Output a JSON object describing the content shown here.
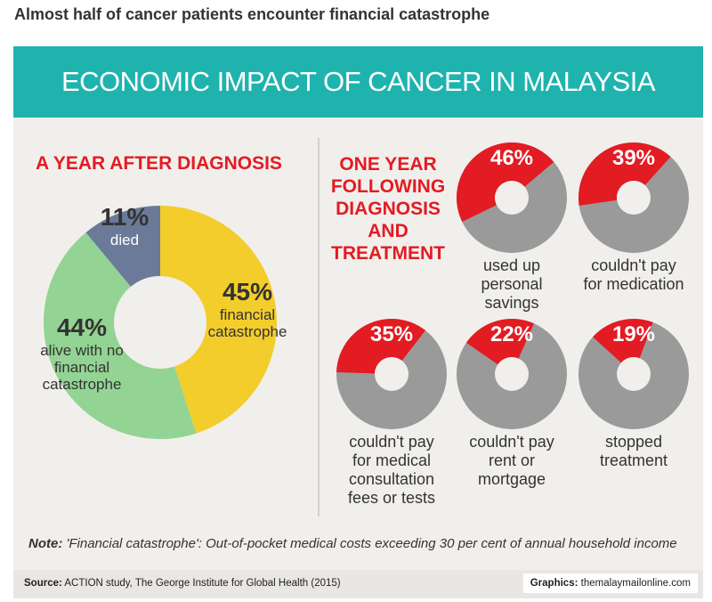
{
  "header": {
    "title": "Almost half of cancer patients encounter financial catastrophe"
  },
  "banner": {
    "title": "ECONOMIC IMPACT OF CANCER IN MALAYSIA"
  },
  "chart_data": [
    {
      "type": "donut",
      "title": "A YEAR AFTER DIAGNOSIS",
      "categories": [
        "financial catastrophe",
        "alive with no financial catastrophe",
        "died"
      ],
      "values": [
        45,
        44,
        11
      ],
      "value_labels": [
        "45%",
        "44%",
        "11%"
      ],
      "colors": [
        "#f3cd2b",
        "#93d393",
        "#6b7a99"
      ]
    },
    {
      "type": "donuts",
      "title": "ONE YEAR FOLLOWING DIAGNOSIS AND TREATMENT",
      "categories": [
        "used up personal savings",
        "couldn't pay for medication",
        "couldn't pay for medical consultation fees or tests",
        "couldn't pay rent or mortgage",
        "stopped treatment"
      ],
      "values": [
        46,
        39,
        35,
        22,
        19
      ],
      "value_labels": [
        "46%",
        "39%",
        "35%",
        "22%",
        "19%"
      ],
      "color": "#e31b23",
      "base_color": "#9a9a9a"
    }
  ],
  "note": {
    "label": "Note:",
    "text": "'Financial catastrophe': Out-of-pocket medical costs exceeding 30 per cent of annual household income"
  },
  "source": {
    "label": "Source:",
    "text": "ACTION study, The George Institute for Global Health (2015)"
  },
  "credit": {
    "label": "Graphics:",
    "text": "themalaymailonline.com"
  }
}
